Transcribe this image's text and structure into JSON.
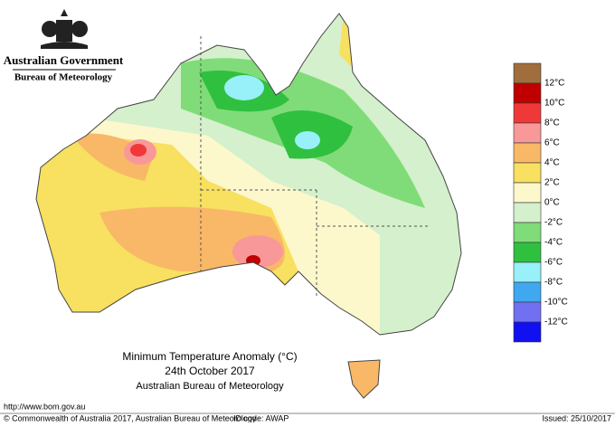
{
  "header": {
    "agency": "Australian Government",
    "bureau": "Bureau of Meteorology"
  },
  "map": {
    "title": "Minimum Temperature Anomaly (°C)",
    "date": "24th October 2017",
    "source": "Australian Bureau of Meteorology"
  },
  "legend": {
    "colors": [
      "#a06e3c",
      "#c00000",
      "#f03838",
      "#f89898",
      "#f8b868",
      "#f8e060",
      "#fcf8cc",
      "#d4f0cc",
      "#80dc78",
      "#30c040",
      "#98f0f8",
      "#40a8f0",
      "#7070f0",
      "#1010f0"
    ],
    "labels": [
      "12°C",
      "10°C",
      "8°C",
      "6°C",
      "4°C",
      "2°C",
      "0°C",
      "-2°C",
      "-4°C",
      "-6°C",
      "-8°C",
      "-10°C",
      "-12°C"
    ]
  },
  "footer": {
    "url": "http://www.bom.gov.au",
    "copyright": "© Commonwealth of Australia 2017, Australian Bureau of Meteorology",
    "id_code": "ID code: AWAP",
    "issued": "Issued: 25/10/2017"
  }
}
